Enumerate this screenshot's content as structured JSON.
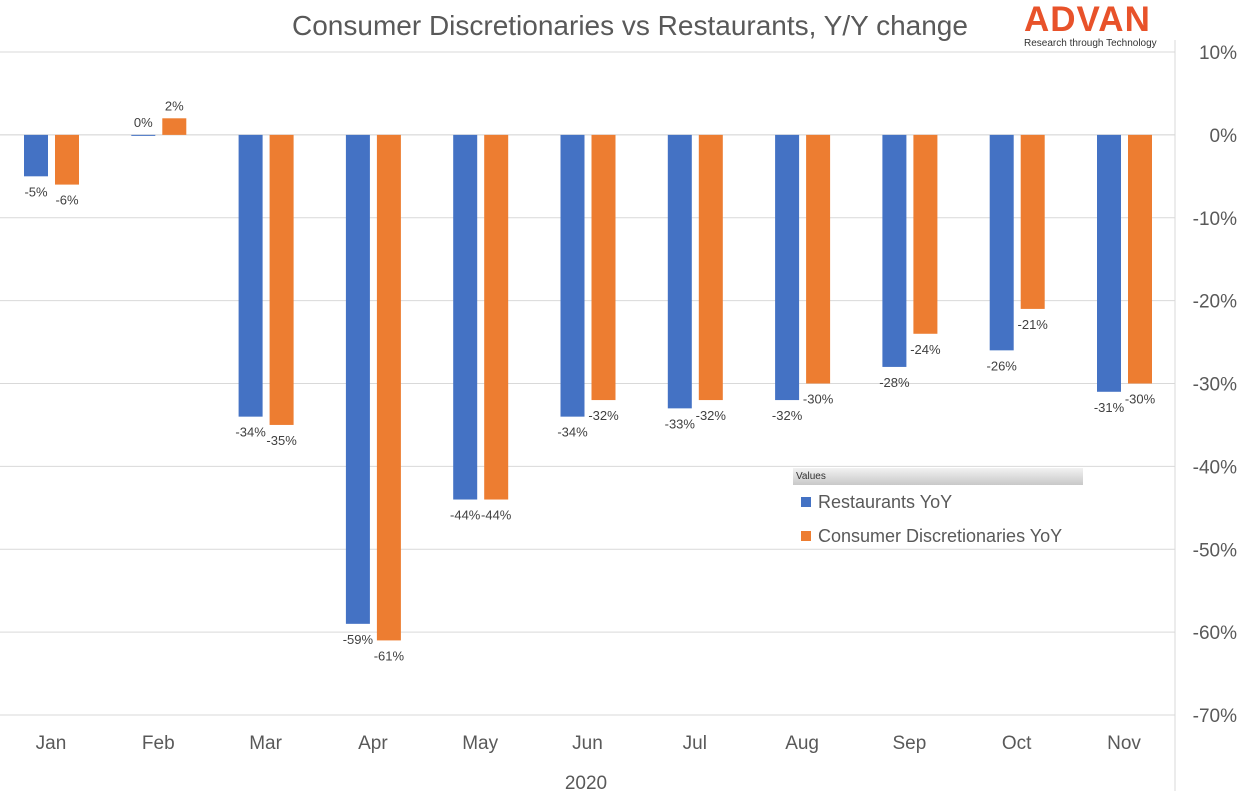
{
  "title": "Consumer Discretionaries vs Restaurants, Y/Y change",
  "brand": {
    "name": "ADVAN",
    "tagline": "Research through Technology",
    "color": "#e8522a"
  },
  "legend": {
    "header": "Values"
  },
  "chart_data": {
    "type": "bar",
    "title": "Consumer Discretionaries vs Restaurants, Y/Y change",
    "xlabel": "2020",
    "ylabel": "",
    "categories": [
      "Jan",
      "Feb",
      "Mar",
      "Apr",
      "May",
      "Jun",
      "Jul",
      "Aug",
      "Sep",
      "Oct",
      "Nov"
    ],
    "series": [
      {
        "name": "Restaurants YoY",
        "color": "#4472c4",
        "values": [
          -5,
          0,
          -34,
          -59,
          -44,
          -34,
          -33,
          -32,
          -28,
          -26,
          -31
        ],
        "labels": [
          "-5%",
          "0%",
          "-34%",
          "-59%",
          "-44%",
          "-34%",
          "-33%",
          "-32%",
          "-28%",
          "-26%",
          "-31%"
        ]
      },
      {
        "name": "Consumer Discretionaries YoY",
        "color": "#ed7d31",
        "values": [
          -6,
          2,
          -35,
          -61,
          -44,
          -32,
          -32,
          -30,
          -24,
          -21,
          -30
        ],
        "labels": [
          "-6%",
          "2%",
          "-35%",
          "-61%",
          "-44%",
          "-32%",
          "-32%",
          "-30%",
          "-24%",
          "-21%",
          "-30%"
        ]
      }
    ],
    "ylim": [
      -70,
      10
    ],
    "yticks": [
      10,
      0,
      -10,
      -20,
      -30,
      -40,
      -50,
      -60,
      -70
    ],
    "ytick_labels": [
      "10%",
      "0%",
      "-10%",
      "-20%",
      "-30%",
      "-40%",
      "-50%",
      "-60%",
      "-70%"
    ],
    "y_axis_side": "right",
    "grid": true,
    "legend_position": "right-middle"
  }
}
